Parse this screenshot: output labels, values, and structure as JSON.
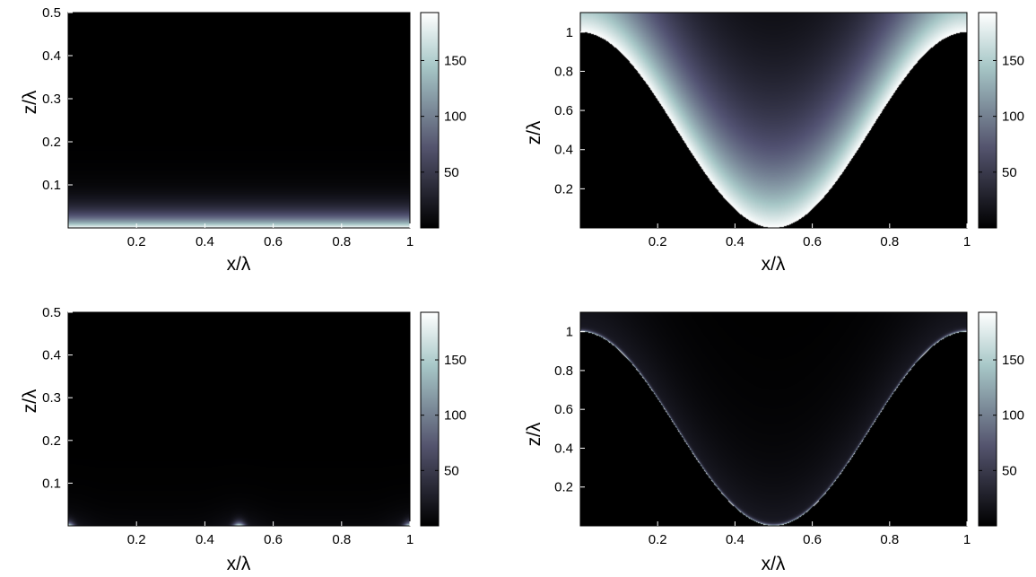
{
  "chart_data": [
    {
      "type": "heatmap",
      "panel": "top-left",
      "xlabel": "x/λ",
      "ylabel": "z/λ",
      "xlim": [
        0,
        1
      ],
      "ylim": [
        0,
        0.5
      ],
      "xticks": [
        0.2,
        0.4,
        0.6,
        0.8,
        1
      ],
      "yticks": [
        0.1,
        0.2,
        0.3,
        0.4,
        0.5
      ],
      "boundary": "flat",
      "field": "uniform-decay",
      "colorbar": {
        "range": [
          0,
          193
        ],
        "ticks": [
          50,
          100,
          150
        ],
        "colormap": "bone"
      }
    },
    {
      "type": "heatmap",
      "panel": "top-right",
      "xlabel": "x/λ",
      "ylabel": "z/λ",
      "xlim": [
        0,
        1
      ],
      "ylim": [
        0,
        1.1
      ],
      "xticks": [
        0.2,
        0.4,
        0.6,
        0.8,
        1
      ],
      "yticks": [
        0.2,
        0.4,
        0.6,
        0.8,
        1
      ],
      "boundary": "z = (1 + cos(2πx)) / 2",
      "field": "strong-decay",
      "colorbar": {
        "range": [
          0,
          193
        ],
        "ticks": [
          50,
          100,
          150
        ],
        "colormap": "bone"
      }
    },
    {
      "type": "heatmap",
      "panel": "bottom-left",
      "xlabel": "x/λ",
      "ylabel": "z/λ",
      "xlim": [
        0,
        1
      ],
      "ylim": [
        0,
        0.5
      ],
      "xticks": [
        0.2,
        0.4,
        0.6,
        0.8,
        1
      ],
      "yticks": [
        0.1,
        0.2,
        0.3,
        0.4,
        0.5
      ],
      "boundary": "flat",
      "field": "localized-spots at x = 0, 0.5, 1",
      "colorbar": {
        "range": [
          0,
          193
        ],
        "ticks": [
          50,
          100,
          150
        ],
        "colormap": "bone"
      }
    },
    {
      "type": "heatmap",
      "panel": "bottom-right",
      "xlabel": "x/λ",
      "ylabel": "z/λ",
      "xlim": [
        0,
        1
      ],
      "ylim": [
        0,
        1.1
      ],
      "xticks": [
        0.2,
        0.4,
        0.6,
        0.8,
        1
      ],
      "yticks": [
        0.2,
        0.4,
        0.6,
        0.8,
        1
      ],
      "boundary": "z = (1 + cos(2πx)) / 2",
      "field": "weak, bright along boundary",
      "colorbar": {
        "range": [
          0,
          193
        ],
        "ticks": [
          50,
          100,
          150
        ],
        "colormap": "bone"
      }
    }
  ]
}
